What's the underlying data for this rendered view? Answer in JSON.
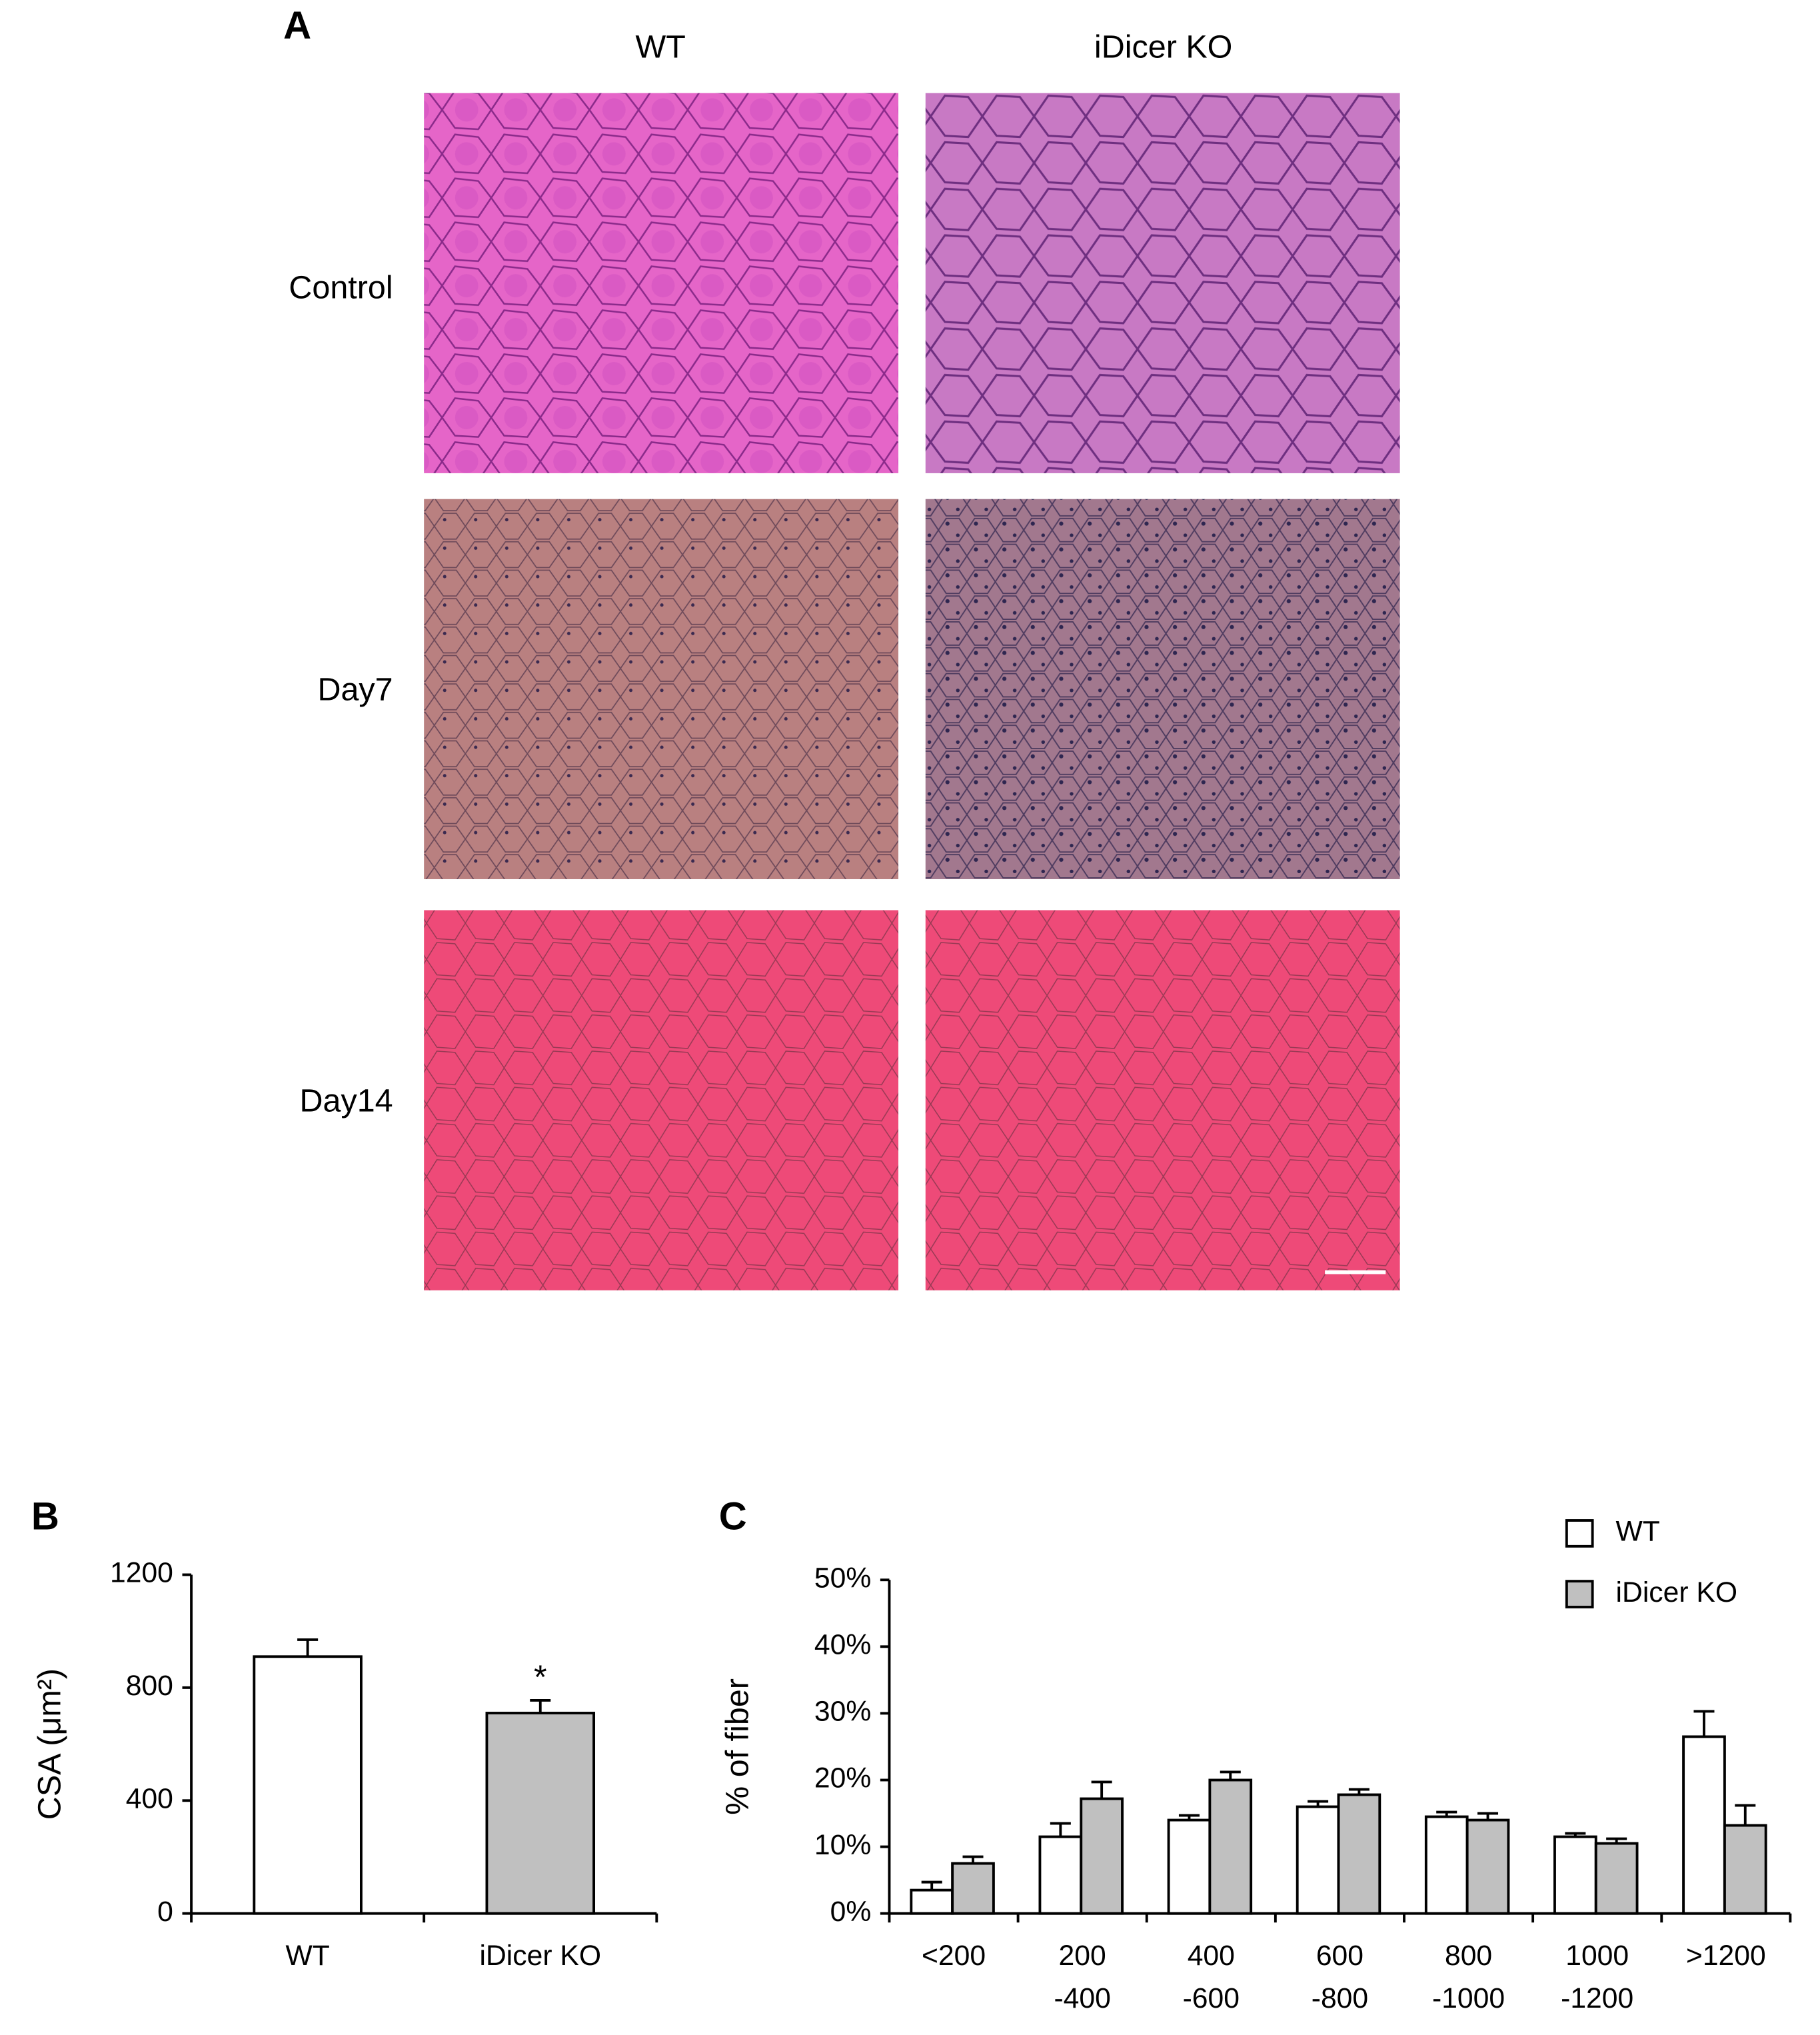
{
  "panel_a": {
    "label": "A",
    "columns": [
      "WT",
      "iDicer KO"
    ],
    "rows": [
      "Control",
      "Day7",
      "Day14"
    ]
  },
  "chart_data": [
    {
      "type": "bar",
      "panel_label": "B",
      "ylabel": "CSA (μm²)",
      "categories": [
        "WT",
        "iDicer KO"
      ],
      "values": [
        910,
        710
      ],
      "errors": [
        60,
        45
      ],
      "colors": [
        "#ffffff",
        "#c0c0c0"
      ],
      "ylim": [
        0,
        1200
      ],
      "yticks": [
        0,
        400,
        800,
        1200
      ],
      "annotations": [
        {
          "text": "*",
          "at": "iDicer KO"
        }
      ]
    },
    {
      "type": "grouped_bar",
      "panel_label": "C",
      "ylabel": "% of fiber",
      "categories": [
        [
          "<200"
        ],
        [
          "200",
          "-400"
        ],
        [
          "400",
          "-600"
        ],
        [
          "600",
          "-800"
        ],
        [
          "800",
          "-1000"
        ],
        [
          "1000",
          "-1200"
        ],
        [
          ">1200"
        ]
      ],
      "series": [
        {
          "name": "WT",
          "color": "#ffffff",
          "values": [
            3.5,
            11.5,
            14,
            16,
            14.5,
            11.5,
            26.5
          ],
          "errors": [
            1.2,
            2,
            0.7,
            0.8,
            0.7,
            0.5,
            3.8
          ]
        },
        {
          "name": "iDicer KO",
          "color": "#c0c0c0",
          "values": [
            7.5,
            17.2,
            20,
            17.8,
            14,
            10.5,
            13.2
          ],
          "errors": [
            1,
            2.5,
            1.2,
            0.8,
            1,
            0.7,
            3
          ]
        }
      ],
      "ylim": [
        0,
        50
      ],
      "yticks": [
        {
          "value": 0,
          "label": "0%"
        },
        {
          "value": 10,
          "label": "10%"
        },
        {
          "value": 20,
          "label": "20%"
        },
        {
          "value": 30,
          "label": "30%"
        },
        {
          "value": 40,
          "label": "40%"
        },
        {
          "value": 50,
          "label": "50%"
        }
      ],
      "legend": "upper right"
    }
  ]
}
